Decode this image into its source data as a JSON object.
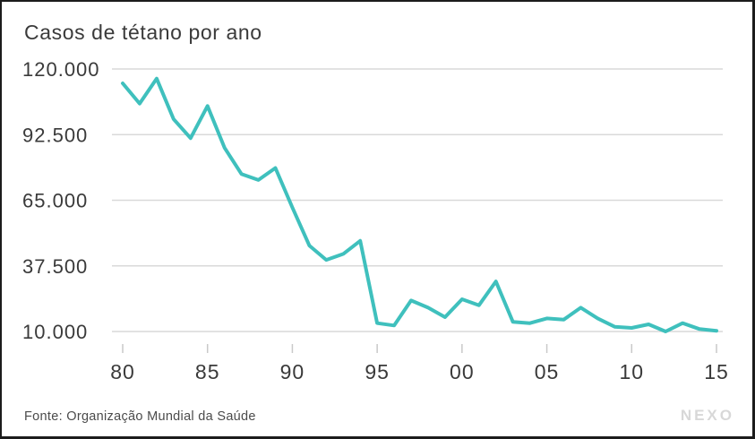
{
  "footer": {
    "source": "Fonte: Organização Mundial da Saúde",
    "brand": "NEXO"
  },
  "colors": {
    "line": "#3fc0bd",
    "grid": "#d9d9d9",
    "tick": "#c9c9c9",
    "text": "#3a3a3a",
    "muted_text": "#4b4b4b",
    "brand": "#d8d8d8",
    "frame_border": "#1c1c1c",
    "background": "#ffffff"
  },
  "chart_data": {
    "type": "line",
    "title": "Casos de tétano por ano",
    "series_name": "Casos de tétano por ano",
    "xlabel": "",
    "ylabel": "",
    "grid": "horizontal",
    "legend": "none",
    "xlim": [
      1980,
      2015
    ],
    "ylim": [
      10000,
      120000
    ],
    "x": [
      1980,
      1981,
      1982,
      1983,
      1984,
      1985,
      1986,
      1987,
      1988,
      1989,
      1990,
      1991,
      1992,
      1993,
      1994,
      1995,
      1996,
      1997,
      1998,
      1999,
      2000,
      2001,
      2002,
      2003,
      2004,
      2005,
      2006,
      2007,
      2008,
      2009,
      2010,
      2011,
      2012,
      2013,
      2014,
      2015
    ],
    "values": [
      114000,
      105500,
      116000,
      99000,
      91000,
      104500,
      87000,
      76000,
      73500,
      78500,
      62000,
      46000,
      40000,
      42500,
      48000,
      13500,
      12500,
      23000,
      20000,
      16000,
      23500,
      21000,
      31000,
      14000,
      13500,
      15500,
      15000,
      20000,
      15500,
      12000,
      11500,
      13000,
      10000,
      13500,
      11000,
      10300
    ],
    "y_ticks": [
      {
        "label": "120.000",
        "value": 120000
      },
      {
        "label": "92.500",
        "value": 92500
      },
      {
        "label": "65.000",
        "value": 65000
      },
      {
        "label": "37.500",
        "value": 37500
      },
      {
        "label": "10.000",
        "value": 10000
      }
    ],
    "x_ticks": [
      {
        "label": "80",
        "year": 1980
      },
      {
        "label": "85",
        "year": 1985
      },
      {
        "label": "90",
        "year": 1990
      },
      {
        "label": "95",
        "year": 1995
      },
      {
        "label": "00",
        "year": 2000
      },
      {
        "label": "05",
        "year": 2005
      },
      {
        "label": "10",
        "year": 2010
      },
      {
        "label": "15",
        "year": 2015
      }
    ]
  }
}
